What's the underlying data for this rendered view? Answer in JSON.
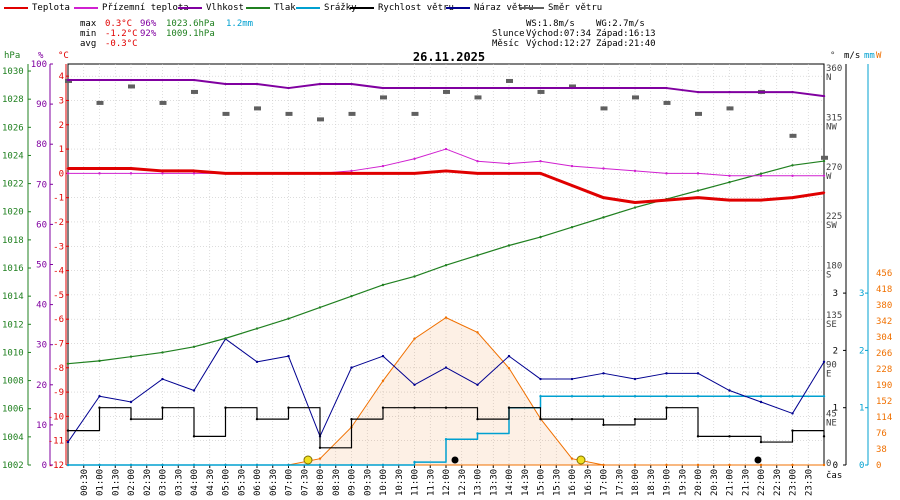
{
  "legend": [
    {
      "label": "Teplota",
      "color": "#e00000"
    },
    {
      "label": "Přízemní teplota",
      "color": "#d020d0"
    },
    {
      "label": "Vlhkost",
      "color": "#8000a0"
    },
    {
      "label": "Tlak",
      "color": "#208020"
    },
    {
      "label": "Srážky",
      "color": "#00a0d0"
    },
    {
      "label": "Rychlost větru",
      "color": "#000000"
    },
    {
      "label": "Náraz větru",
      "color": "#000090"
    },
    {
      "label": "Směr větru",
      "color": "#606060"
    }
  ],
  "stats": {
    "max_label": "max",
    "max_temp": "0.3°C",
    "max_hum": "96%",
    "max_press": "1023.6hPa",
    "rain": "1.2mm",
    "min_label": "min",
    "min_temp": "-1.2°C",
    "min_hum": "92%",
    "min_press": "1009.1hPa",
    "avg_label": "avg",
    "avg_temp": "-0.3°C"
  },
  "wind_info": {
    "ws": "WS:1.8m/s",
    "wg": "WG:2.7m/s"
  },
  "sun": {
    "label": "Slunce",
    "rise": "Východ:07:34",
    "set": "Západ:16:13"
  },
  "moon": {
    "label": "Měsíc",
    "rise": "Východ:12:27",
    "set": "Západ:21:40"
  },
  "date_title": "26.11.2025",
  "units": {
    "hpa": "hPa",
    "pct": "%",
    "degc": "°C",
    "deg": "°",
    "ms": "m/s",
    "mm": "mm",
    "w": "W",
    "time": "čas"
  },
  "axes": {
    "hpa": [
      "1030",
      "1028",
      "1026",
      "1024",
      "1022",
      "1020",
      "1018",
      "1016",
      "1014",
      "1012",
      "1010",
      "1008",
      "1006",
      "1004",
      "1002"
    ],
    "pct": [
      "100",
      "90",
      "80",
      "70",
      "60",
      "50",
      "40",
      "30",
      "20",
      "10",
      "0"
    ],
    "degc": [
      "4",
      "3",
      "2",
      "1",
      "0",
      "-1",
      "-2",
      "-3",
      "-4",
      "-5",
      "-6",
      "-7",
      "-8",
      "-9",
      "-10",
      "-11",
      "-12"
    ],
    "dir": [
      {
        "deg": "360",
        "dir": "N"
      },
      {
        "deg": "315",
        "dir": "NW"
      },
      {
        "deg": "270",
        "dir": "W"
      },
      {
        "deg": "225",
        "dir": "SW"
      },
      {
        "deg": "180",
        "dir": "S"
      },
      {
        "deg": "135",
        "dir": "SE"
      },
      {
        "deg": "90",
        "dir": "E"
      },
      {
        "deg": "45",
        "dir": "NE"
      },
      {
        "deg": "0",
        "dir": ""
      }
    ],
    "ms": [
      "0",
      "1",
      "2",
      "3"
    ],
    "mm": [
      "0",
      "1",
      "2",
      "3"
    ],
    "w": [
      "456",
      "418",
      "380",
      "342",
      "304",
      "266",
      "228",
      "190",
      "152",
      "114",
      "76",
      "38",
      "0"
    ],
    "time": [
      "00:30",
      "01:00",
      "01:30",
      "02:00",
      "02:30",
      "03:00",
      "03:30",
      "04:00",
      "04:30",
      "05:00",
      "05:30",
      "06:00",
      "06:30",
      "07:00",
      "07:30",
      "08:00",
      "08:30",
      "09:00",
      "09:30",
      "10:00",
      "10:30",
      "11:00",
      "11:30",
      "12:00",
      "12:30",
      "13:00",
      "13:30",
      "14:00",
      "14:30",
      "15:00",
      "15:30",
      "16:00",
      "16:30",
      "17:00",
      "17:30",
      "18:00",
      "18:30",
      "19:00",
      "19:30",
      "20:00",
      "20:30",
      "21:00",
      "21:30",
      "22:00",
      "22:30",
      "23:00",
      "23:30"
    ]
  },
  "colors": {
    "temp": "#e00000",
    "ground": "#d020d0",
    "humidity": "#8000a0",
    "pressure": "#208020",
    "rain": "#00a0d0",
    "wind": "#000000",
    "gust": "#000090",
    "dir": "#606060",
    "solar": "#f07000",
    "grid": "#c8c8c8"
  },
  "chart_data": {
    "type": "line",
    "x_hours": [
      0,
      1,
      2,
      3,
      4,
      5,
      6,
      7,
      8,
      9,
      10,
      11,
      12,
      13,
      14,
      15,
      16,
      17,
      18,
      19,
      20,
      21,
      22,
      23,
      24
    ],
    "series": [
      {
        "name": "Teplota",
        "unit": "°C",
        "values": [
          0.2,
          0.2,
          0.2,
          0.1,
          0.1,
          0.0,
          0.0,
          0.0,
          0.0,
          0.0,
          0.0,
          0.0,
          0.1,
          0.0,
          0.0,
          0.0,
          -0.5,
          -1.0,
          -1.2,
          -1.1,
          -1.0,
          -1.1,
          -1.1,
          -1.0,
          -0.8
        ]
      },
      {
        "name": "Přízemní teplota",
        "unit": "°C",
        "values": [
          0.0,
          0.0,
          0.0,
          0.0,
          0.0,
          0.0,
          0.0,
          0.0,
          0.0,
          0.1,
          0.3,
          0.6,
          1.0,
          0.5,
          0.4,
          0.5,
          0.3,
          0.2,
          0.1,
          0.0,
          0.0,
          -0.1,
          -0.1,
          -0.1,
          -0.1
        ]
      },
      {
        "name": "Vlhkost",
        "unit": "%",
        "values": [
          96,
          96,
          96,
          96,
          96,
          95,
          95,
          94,
          95,
          95,
          94,
          94,
          94,
          94,
          94,
          94,
          94,
          94,
          94,
          94,
          93,
          93,
          93,
          93,
          92
        ]
      },
      {
        "name": "Tlak",
        "unit": "hPa",
        "values": [
          1009.2,
          1009.4,
          1009.7,
          1010.0,
          1010.4,
          1011.0,
          1011.7,
          1012.4,
          1013.2,
          1014.0,
          1014.8,
          1015.4,
          1016.2,
          1016.9,
          1017.6,
          1018.2,
          1018.9,
          1019.6,
          1020.3,
          1020.9,
          1021.5,
          1022.1,
          1022.7,
          1023.3,
          1023.6
        ]
      },
      {
        "name": "Srážky",
        "unit": "mm",
        "values": [
          0,
          0,
          0,
          0,
          0,
          0,
          0,
          0,
          0,
          0,
          0,
          0.05,
          0.45,
          0.55,
          1.0,
          1.2,
          1.2,
          1.2,
          1.2,
          1.2,
          1.2,
          1.2,
          1.2,
          1.2,
          1.2
        ]
      },
      {
        "name": "Rychlost větru",
        "unit": "m/s",
        "values": [
          0.6,
          1.0,
          0.8,
          1.0,
          0.5,
          1.0,
          0.8,
          1.0,
          0.3,
          0.8,
          1.0,
          1.0,
          1.0,
          0.8,
          1.0,
          0.8,
          0.8,
          0.7,
          0.8,
          1.0,
          0.5,
          0.5,
          0.4,
          0.6,
          0.5
        ]
      },
      {
        "name": "Náraz větru",
        "unit": "m/s",
        "values": [
          0.4,
          1.2,
          1.1,
          1.5,
          1.3,
          2.2,
          1.8,
          1.9,
          0.5,
          1.7,
          1.9,
          1.4,
          1.7,
          1.4,
          1.9,
          1.5,
          1.5,
          1.6,
          1.5,
          1.6,
          1.6,
          1.3,
          1.1,
          0.9,
          1.8
        ]
      },
      {
        "name": "Směr větru",
        "unit": "°",
        "values": [
          350,
          330,
          345,
          330,
          340,
          320,
          325,
          320,
          315,
          320,
          335,
          320,
          340,
          335,
          350,
          340,
          345,
          325,
          335,
          330,
          320,
          325,
          340,
          300,
          280
        ]
      },
      {
        "name": "Sluneční záření",
        "unit": "W",
        "values": [
          0,
          0,
          0,
          0,
          0,
          0,
          0,
          0,
          15,
          90,
          200,
          300,
          350,
          315,
          230,
          110,
          15,
          0,
          0,
          0,
          0,
          0,
          0,
          0,
          0
        ]
      }
    ],
    "ylim_temp": [
      -12,
      4.5
    ],
    "ylim_pressure": [
      1002,
      1030.5
    ],
    "ylim_humidity": [
      0,
      100
    ],
    "ylim_wind": [
      0,
      3
    ],
    "ylim_solar": [
      0,
      456
    ]
  }
}
